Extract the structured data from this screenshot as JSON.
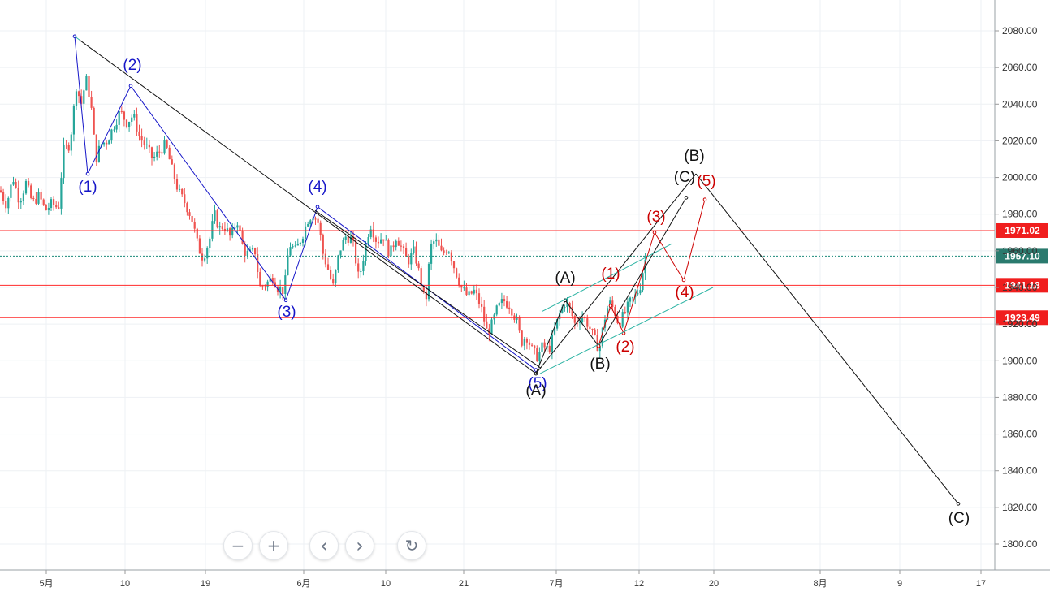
{
  "chart_data": {
    "type": "candlestick",
    "title": "",
    "xlabel": "",
    "ylabel": "",
    "ylim": [
      1790,
      2094
    ],
    "y_ticks": [
      "2080.00",
      "2060.00",
      "2040.00",
      "2020.00",
      "2000.00",
      "1980.00",
      "1960.00",
      "1940.00",
      "1920.00",
      "1900.00",
      "1880.00",
      "1860.00",
      "1840.00",
      "1820.00",
      "1800.00"
    ],
    "x_ticks": [
      "5月",
      "10",
      "19",
      "6月",
      "10",
      "21",
      "7月",
      "12",
      "20",
      "8月",
      "9",
      "17"
    ],
    "grid": true,
    "colors": {
      "up": "#26a69a",
      "down": "#ef5350",
      "level_line": "#ff4d4d",
      "current_line": "#1a8a7a",
      "blue_wave": "#1515c8",
      "red_wave": "#cc0000",
      "black_wave": "#111111",
      "channel": "#2bb3a3"
    },
    "price_levels": [
      {
        "value": 1971.02,
        "label": "1971.02",
        "color": "#ff2a2a"
      },
      {
        "value": 1941.18,
        "label": "1941.18",
        "color": "#ff2a2a"
      },
      {
        "value": 1923.49,
        "label": "1923.49",
        "color": "#ff2a2a"
      }
    ],
    "current_price": {
      "value": 1957.1,
      "label": "1957.10"
    },
    "hidden_tick_label": "1920.00",
    "price_path": [
      [
        0,
        1993
      ],
      [
        8,
        1985
      ],
      [
        16,
        2000
      ],
      [
        24,
        1987
      ],
      [
        32,
        1997
      ],
      [
        40,
        1986
      ],
      [
        48,
        1990
      ],
      [
        56,
        1982
      ],
      [
        64,
        1986
      ],
      [
        72,
        1983
      ],
      [
        78,
        2015
      ],
      [
        86,
        2018
      ],
      [
        94,
        2050
      ],
      [
        100,
        2040
      ],
      [
        106,
        2054
      ],
      [
        112,
        2040
      ],
      [
        118,
        2010
      ],
      [
        124,
        2018
      ],
      [
        132,
        2020
      ],
      [
        140,
        2028
      ],
      [
        148,
        2036
      ],
      [
        156,
        2030
      ],
      [
        164,
        2034
      ],
      [
        172,
        2022
      ],
      [
        180,
        2017
      ],
      [
        188,
        2010
      ],
      [
        196,
        2014
      ],
      [
        204,
        2018
      ],
      [
        212,
        2004
      ],
      [
        220,
        1992
      ],
      [
        228,
        1986
      ],
      [
        236,
        1978
      ],
      [
        244,
        1962
      ],
      [
        250,
        1956
      ],
      [
        258,
        1966
      ],
      [
        264,
        1980
      ],
      [
        270,
        1972
      ],
      [
        276,
        1974
      ],
      [
        284,
        1967
      ],
      [
        292,
        1977
      ],
      [
        300,
        1960
      ],
      [
        306,
        1958
      ],
      [
        314,
        1960
      ],
      [
        320,
        1940
      ],
      [
        328,
        1942
      ],
      [
        336,
        1946
      ],
      [
        342,
        1940
      ],
      [
        350,
        1938
      ],
      [
        356,
        1964
      ],
      [
        364,
        1960
      ],
      [
        372,
        1968
      ],
      [
        380,
        1978
      ],
      [
        386,
        1980
      ],
      [
        392,
        1975
      ],
      [
        398,
        1958
      ],
      [
        404,
        1950
      ],
      [
        410,
        1940
      ],
      [
        418,
        1960
      ],
      [
        426,
        1968
      ],
      [
        434,
        1966
      ],
      [
        442,
        1944
      ],
      [
        448,
        1958
      ],
      [
        456,
        1975
      ],
      [
        464,
        1965
      ],
      [
        472,
        1968
      ],
      [
        480,
        1958
      ],
      [
        488,
        1968
      ],
      [
        496,
        1960
      ],
      [
        502,
        1954
      ],
      [
        510,
        1960
      ],
      [
        518,
        1944
      ],
      [
        524,
        1930
      ],
      [
        530,
        1962
      ],
      [
        536,
        1966
      ],
      [
        544,
        1958
      ],
      [
        552,
        1962
      ],
      [
        560,
        1950
      ],
      [
        568,
        1940
      ],
      [
        576,
        1935
      ],
      [
        584,
        1938
      ],
      [
        592,
        1930
      ],
      [
        600,
        1915
      ],
      [
        606,
        1920
      ],
      [
        612,
        1928
      ],
      [
        620,
        1933
      ],
      [
        628,
        1930
      ],
      [
        636,
        1922
      ],
      [
        642,
        1910
      ],
      [
        648,
        1914
      ],
      [
        656,
        1905
      ],
      [
        662,
        1902
      ],
      [
        668,
        1908
      ],
      [
        676,
        1906
      ],
      [
        684,
        1918
      ],
      [
        690,
        1927
      ],
      [
        696,
        1932
      ],
      [
        702,
        1928
      ],
      [
        708,
        1920
      ],
      [
        716,
        1925
      ],
      [
        724,
        1920
      ],
      [
        732,
        1912
      ],
      [
        738,
        1906
      ],
      [
        744,
        1922
      ],
      [
        750,
        1932
      ],
      [
        756,
        1928
      ],
      [
        762,
        1920
      ],
      [
        768,
        1925
      ],
      [
        776,
        1932
      ],
      [
        782,
        1935
      ],
      [
        788,
        1940
      ],
      [
        794,
        1955
      ],
      [
        800,
        1956
      ]
    ],
    "annotations": {
      "blue_wave": [
        {
          "label": "(1)",
          "x": 108,
          "y": 236
        },
        {
          "label": "(2)",
          "x": 163,
          "y": 86
        },
        {
          "label": "(3)",
          "x": 353,
          "y": 390
        },
        {
          "label": "(4)",
          "x": 391,
          "y": 236
        },
        {
          "label": "(5)",
          "x": 662,
          "y": 478
        }
      ],
      "black_wave": [
        {
          "label": "(A)",
          "x": 660,
          "y": 487
        },
        {
          "label": "(A)",
          "x": 696,
          "y": 348
        },
        {
          "label": "(B)",
          "x": 739,
          "y": 454
        },
        {
          "label": "(C)",
          "x": 843,
          "y": 224
        },
        {
          "label": "(B)",
          "x": 855,
          "y": 198
        },
        {
          "label": "(C)",
          "x": 1181,
          "y": 644
        }
      ],
      "red_wave": [
        {
          "label": "(1)",
          "x": 752,
          "y": 343
        },
        {
          "label": "(2)",
          "x": 770,
          "y": 433
        },
        {
          "label": "(3)",
          "x": 808,
          "y": 273
        },
        {
          "label": "(4)",
          "x": 843,
          "y": 366
        },
        {
          "label": "(5)",
          "x": 870,
          "y": 229
        }
      ]
    }
  },
  "controls": {
    "zoom_out_label": "−",
    "zoom_in_label": "+",
    "scroll_left_label": "‹",
    "scroll_right_label": "›",
    "reset_label": "↻"
  }
}
